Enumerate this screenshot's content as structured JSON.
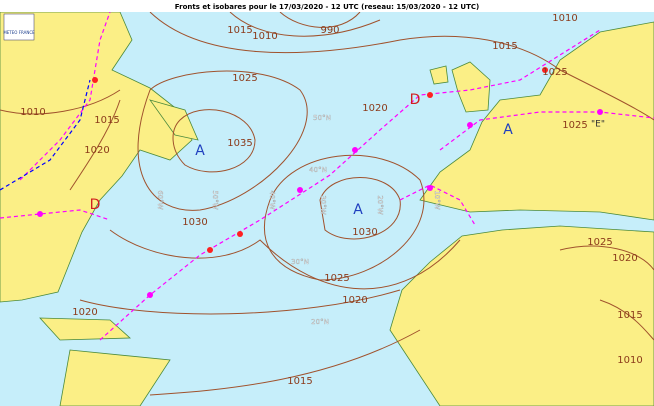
{
  "map": {
    "title": "Fronts et isobares pour le 17/03/2020 - 12 UTC (reseau: 15/03/2020 - 12 UTC)",
    "logo_text": "METEO FRANCE",
    "isobar_labels": [
      "1015",
      "1010",
      "990",
      "1010",
      "1015",
      "1025",
      "1025",
      "1020",
      "1035",
      "1030",
      "1030",
      "1025",
      "1020",
      "1020",
      "1015",
      "1010",
      "1015",
      "1020",
      "1025",
      "1020",
      "1015",
      "1010",
      "1025"
    ],
    "centers": [
      "A",
      "A",
      "A",
      "D",
      "D",
      "\"E\""
    ],
    "grid_labels": [
      "50°N",
      "40°N",
      "30°N",
      "20°N",
      "50°W",
      "40°W",
      "30°W",
      "20°W",
      "60°W",
      "10°W"
    ]
  }
}
